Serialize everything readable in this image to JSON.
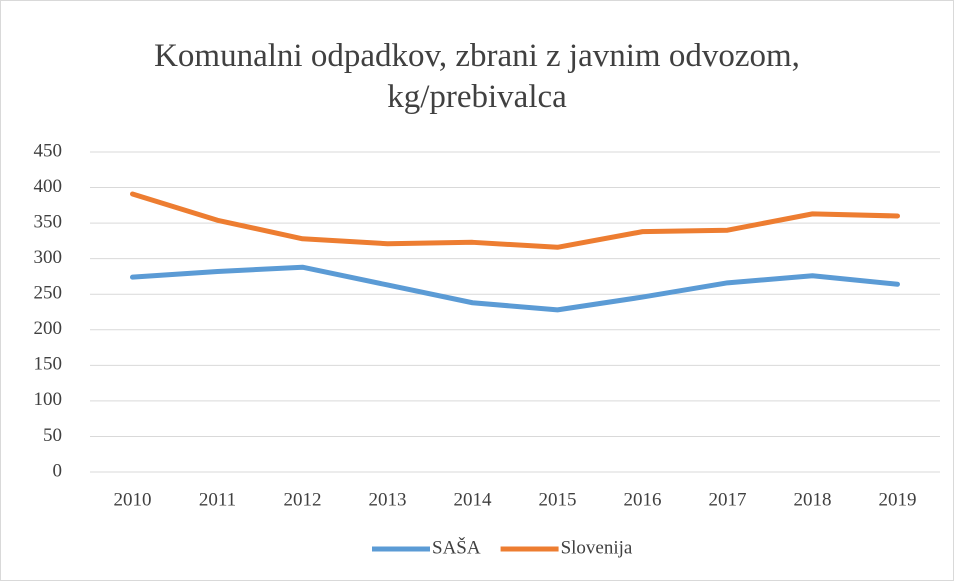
{
  "chart_data": {
    "type": "line",
    "title": "Komunalni odpadkov, zbrani z javnim odvozom, kg/prebivalca",
    "categories": [
      "2010",
      "2011",
      "2012",
      "2013",
      "2014",
      "2015",
      "2016",
      "2017",
      "2018",
      "2019"
    ],
    "series": [
      {
        "name": "SAŠA",
        "color": "#5b9bd5",
        "values": [
          274,
          282,
          288,
          263,
          238,
          228,
          246,
          266,
          276,
          264
        ]
      },
      {
        "name": "Slovenija",
        "color": "#ed7d31",
        "values": [
          391,
          354,
          328,
          321,
          323,
          316,
          338,
          340,
          363,
          360
        ]
      }
    ],
    "ylim": [
      0,
      450
    ],
    "yticks": [
      0,
      50,
      100,
      150,
      200,
      250,
      300,
      350,
      400,
      450
    ],
    "grid": true,
    "legend": "bottom"
  }
}
